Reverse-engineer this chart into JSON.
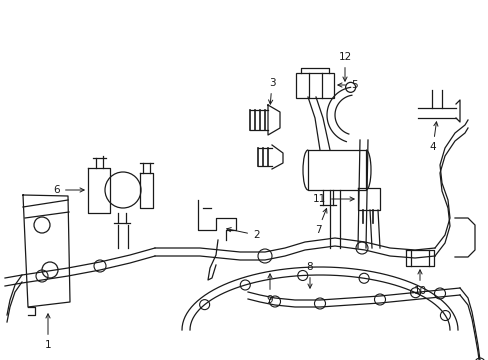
{
  "bg_color": "#ffffff",
  "lc": "#1a1a1a",
  "lw": 0.9,
  "fs": 7.5,
  "figw": 4.89,
  "figh": 3.6,
  "dpi": 100
}
